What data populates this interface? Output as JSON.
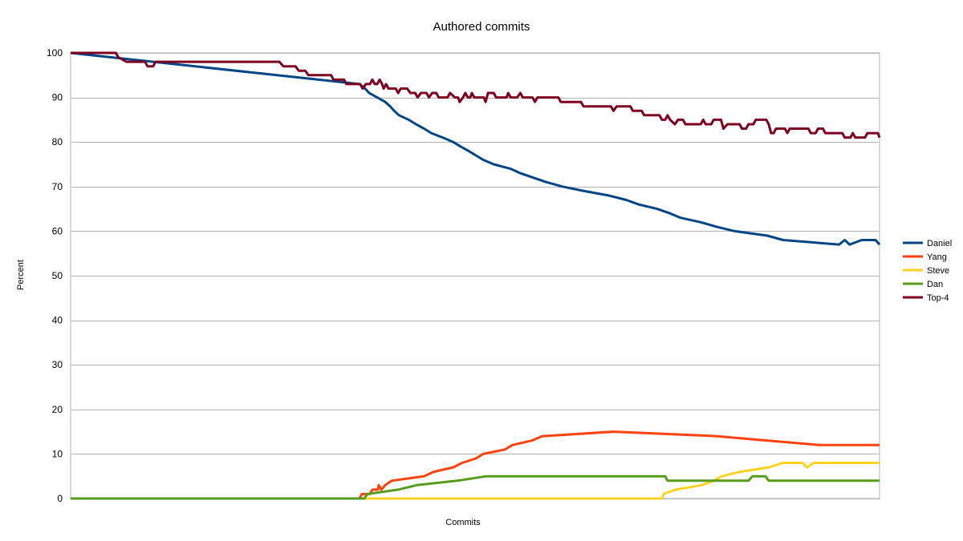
{
  "chart_data": {
    "type": "line",
    "title": "Authored commits",
    "xlabel": "Commits",
    "ylabel": "Percent",
    "ylim": [
      0,
      100
    ],
    "yticks": [
      0,
      10,
      20,
      30,
      40,
      50,
      60,
      70,
      80,
      90,
      100
    ],
    "xlim": [
      0,
      100
    ],
    "grid": true,
    "legend_position": "right",
    "series": [
      {
        "name": "Daniel",
        "color": "#004586",
        "points": [
          [
            0,
            100
          ],
          [
            35.7,
            93
          ],
          [
            36.4,
            92
          ],
          [
            36.9,
            91
          ],
          [
            37.9,
            90
          ],
          [
            38.9,
            89
          ],
          [
            39.5,
            88
          ],
          [
            40,
            87
          ],
          [
            40.6,
            86
          ],
          [
            41.8,
            85
          ],
          [
            42.7,
            84
          ],
          [
            43.7,
            83
          ],
          [
            44.6,
            82
          ],
          [
            46,
            81
          ],
          [
            47.3,
            80
          ],
          [
            48.2,
            79
          ],
          [
            49.2,
            78
          ],
          [
            50.1,
            77
          ],
          [
            51,
            76
          ],
          [
            52.3,
            75
          ],
          [
            54.4,
            74
          ],
          [
            55.6,
            73
          ],
          [
            57.2,
            72
          ],
          [
            58.8,
            71
          ],
          [
            60.8,
            70
          ],
          [
            63.5,
            69
          ],
          [
            66.5,
            68
          ],
          [
            68.7,
            67
          ],
          [
            70.2,
            66
          ],
          [
            72.5,
            65
          ],
          [
            74.1,
            64
          ],
          [
            75.4,
            63
          ],
          [
            77.9,
            62
          ],
          [
            79.8,
            61
          ],
          [
            82.1,
            60
          ],
          [
            86.1,
            59
          ],
          [
            88.1,
            58
          ],
          [
            95,
            57
          ],
          [
            95.7,
            58
          ],
          [
            96.3,
            57
          ],
          [
            97.8,
            58
          ],
          [
            99.5,
            58
          ],
          [
            100,
            57
          ]
        ]
      },
      {
        "name": "Yang",
        "color": "#ff420e",
        "points": [
          [
            0,
            0
          ],
          [
            35.7,
            0
          ],
          [
            36,
            1
          ],
          [
            37,
            1
          ],
          [
            37.3,
            2
          ],
          [
            38,
            2
          ],
          [
            38.1,
            3
          ],
          [
            38.4,
            2
          ],
          [
            38.9,
            3
          ],
          [
            39.7,
            4
          ],
          [
            43.7,
            5
          ],
          [
            44.9,
            6
          ],
          [
            47.3,
            7
          ],
          [
            48.4,
            8
          ],
          [
            50.1,
            9
          ],
          [
            51,
            10
          ],
          [
            53.7,
            11
          ],
          [
            54.6,
            12
          ],
          [
            57,
            13
          ],
          [
            58.3,
            14
          ],
          [
            67.1,
            15
          ],
          [
            79.9,
            14
          ],
          [
            86.2,
            13
          ],
          [
            92.6,
            12
          ],
          [
            100,
            12
          ]
        ]
      },
      {
        "name": "Steve",
        "color": "#ffd320",
        "points": [
          [
            0,
            0
          ],
          [
            73.1,
            0
          ],
          [
            73.3,
            1
          ],
          [
            74.8,
            2
          ],
          [
            78,
            3
          ],
          [
            79.5,
            4
          ],
          [
            80.5,
            5
          ],
          [
            82.8,
            6
          ],
          [
            86.3,
            7
          ],
          [
            88.1,
            8
          ],
          [
            90.5,
            8
          ],
          [
            91,
            7
          ],
          [
            91.9,
            8
          ],
          [
            100,
            8
          ]
        ]
      },
      {
        "name": "Dan",
        "color": "#579d1c",
        "points": [
          [
            0,
            0
          ],
          [
            36.3,
            0
          ],
          [
            36.7,
            1
          ],
          [
            40.5,
            2
          ],
          [
            42.8,
            3
          ],
          [
            47.8,
            4
          ],
          [
            51.4,
            5
          ],
          [
            73.5,
            5
          ],
          [
            73.8,
            4
          ],
          [
            83.8,
            4
          ],
          [
            84.3,
            5
          ],
          [
            85.9,
            5
          ],
          [
            86.3,
            4
          ],
          [
            100,
            4
          ]
        ]
      },
      {
        "name": "Top-4",
        "color": "#7e0021",
        "points": [
          [
            0,
            100
          ],
          [
            5.6,
            100
          ],
          [
            5.9,
            99
          ],
          [
            6.9,
            98
          ],
          [
            9.2,
            98
          ],
          [
            9.5,
            97
          ],
          [
            10.2,
            97
          ],
          [
            10.5,
            98
          ],
          [
            25.8,
            98
          ],
          [
            26.3,
            97
          ],
          [
            27.8,
            97
          ],
          [
            28.2,
            96
          ],
          [
            29,
            96
          ],
          [
            29.4,
            95
          ],
          [
            32.2,
            95
          ],
          [
            32.5,
            94
          ],
          [
            33.8,
            94
          ],
          [
            34.1,
            93
          ],
          [
            35.8,
            93
          ],
          [
            36.1,
            92
          ],
          [
            36.5,
            93
          ],
          [
            37,
            93
          ],
          [
            37.3,
            94
          ],
          [
            37.6,
            93
          ],
          [
            37.9,
            93
          ],
          [
            38.2,
            94
          ],
          [
            38.5,
            93
          ],
          [
            38.7,
            92
          ],
          [
            39,
            93
          ],
          [
            39.3,
            92
          ],
          [
            40.2,
            92
          ],
          [
            40.5,
            91
          ],
          [
            40.8,
            92
          ],
          [
            41.6,
            92
          ],
          [
            42,
            91
          ],
          [
            42.6,
            91
          ],
          [
            42.9,
            90
          ],
          [
            43.3,
            91
          ],
          [
            44,
            91
          ],
          [
            44.3,
            90
          ],
          [
            44.7,
            91
          ],
          [
            45.2,
            91
          ],
          [
            45.5,
            90
          ],
          [
            46.6,
            90
          ],
          [
            46.9,
            91
          ],
          [
            47.5,
            90
          ],
          [
            47.9,
            90
          ],
          [
            48.1,
            89
          ],
          [
            48.5,
            90
          ],
          [
            48.8,
            91
          ],
          [
            49.1,
            90
          ],
          [
            49.4,
            90
          ],
          [
            49.6,
            91
          ],
          [
            49.9,
            90
          ],
          [
            51.1,
            90
          ],
          [
            51.3,
            89
          ],
          [
            51.6,
            91
          ],
          [
            52.3,
            91
          ],
          [
            52.6,
            90
          ],
          [
            53.9,
            90
          ],
          [
            54.1,
            91
          ],
          [
            54.4,
            90
          ],
          [
            55.2,
            90
          ],
          [
            55.6,
            91
          ],
          [
            55.9,
            90
          ],
          [
            57.1,
            90
          ],
          [
            57.4,
            89
          ],
          [
            57.7,
            90
          ],
          [
            60.3,
            90
          ],
          [
            60.6,
            89
          ],
          [
            63.1,
            89
          ],
          [
            63.4,
            88
          ],
          [
            66.8,
            88
          ],
          [
            67.1,
            87
          ],
          [
            67.5,
            88
          ],
          [
            69.2,
            88
          ],
          [
            69.5,
            87
          ],
          [
            70.6,
            87
          ],
          [
            70.9,
            86
          ],
          [
            72.8,
            86
          ],
          [
            73.1,
            85
          ],
          [
            73.5,
            85
          ],
          [
            73.8,
            86
          ],
          [
            74.1,
            85
          ],
          [
            74.7,
            84
          ],
          [
            75.1,
            85
          ],
          [
            75.7,
            85
          ],
          [
            76,
            84
          ],
          [
            77.9,
            84
          ],
          [
            78.2,
            85
          ],
          [
            78.5,
            84
          ],
          [
            79.2,
            84
          ],
          [
            79.5,
            85
          ],
          [
            80.4,
            85
          ],
          [
            80.7,
            83
          ],
          [
            81.2,
            84
          ],
          [
            82.7,
            84
          ],
          [
            83,
            83
          ],
          [
            83.5,
            83
          ],
          [
            83.8,
            84
          ],
          [
            84.4,
            84
          ],
          [
            84.7,
            85
          ],
          [
            86,
            85
          ],
          [
            86.3,
            84
          ],
          [
            86.6,
            82
          ],
          [
            86.9,
            82
          ],
          [
            87.2,
            83
          ],
          [
            88.3,
            83
          ],
          [
            88.6,
            82
          ],
          [
            88.9,
            83
          ],
          [
            91.2,
            83
          ],
          [
            91.5,
            82
          ],
          [
            92.1,
            82
          ],
          [
            92.4,
            83
          ],
          [
            93,
            83
          ],
          [
            93.3,
            82
          ],
          [
            95.4,
            82
          ],
          [
            95.7,
            81
          ],
          [
            96.4,
            81
          ],
          [
            96.7,
            82
          ],
          [
            97,
            81
          ],
          [
            98.2,
            81
          ],
          [
            98.5,
            82
          ],
          [
            99.8,
            82
          ],
          [
            100,
            81
          ]
        ]
      }
    ]
  }
}
